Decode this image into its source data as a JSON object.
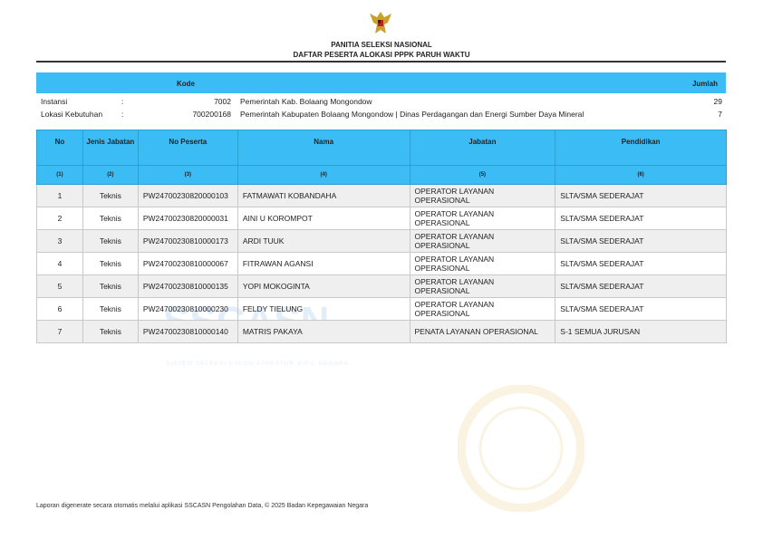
{
  "header": {
    "title": "PANITIA SELEKSI NASIONAL",
    "subtitle": "DAFTAR PESERTA ALOKASI PPPK PARUH WAKTU"
  },
  "summary": {
    "kode_label": "Kode",
    "jumlah_label": "Jumlah",
    "rows": [
      {
        "label": "Instansi",
        "sep": ":",
        "code": "7002",
        "name": "Pemerintah Kab. Bolaang Mongondow",
        "count": "29"
      },
      {
        "label": "Lokasi Kebutuhan",
        "sep": ":",
        "code": "700200168",
        "name": "Pemerintah Kabupaten Bolaang Mongondow | Dinas Perdagangan dan Energi Sumber Daya Mineral",
        "count": "7"
      }
    ]
  },
  "table": {
    "headers": [
      "No",
      "Jenis Jabatan",
      "No Peserta",
      "Nama",
      "Jabatan",
      "Pendidikan"
    ],
    "numbers": [
      "(1)",
      "(2)",
      "(3)",
      "(4)",
      "(5)",
      "(6)"
    ],
    "rows": [
      [
        "1",
        "Teknis",
        "PW24700230820000103",
        "FATMAWATI KOBANDAHA",
        "OPERATOR LAYANAN OPERASIONAL",
        "SLTA/SMA SEDERAJAT"
      ],
      [
        "2",
        "Teknis",
        "PW24700230820000031",
        "AINI U KOROMPOT",
        "OPERATOR LAYANAN OPERASIONAL",
        "SLTA/SMA SEDERAJAT"
      ],
      [
        "3",
        "Teknis",
        "PW24700230810000173",
        "ARDI TUUK",
        "OPERATOR LAYANAN OPERASIONAL",
        "SLTA/SMA SEDERAJAT"
      ],
      [
        "4",
        "Teknis",
        "PW24700230810000067",
        "FITRAWAN AGANSI",
        "OPERATOR LAYANAN OPERASIONAL",
        "SLTA/SMA SEDERAJAT"
      ],
      [
        "5",
        "Teknis",
        "PW24700230810000135",
        "YOPI MOKOGINTA",
        "OPERATOR LAYANAN OPERASIONAL",
        "SLTA/SMA SEDERAJAT"
      ],
      [
        "6",
        "Teknis",
        "PW24700230810000230",
        "FELDY TIELUNG",
        "OPERATOR LAYANAN OPERASIONAL",
        "SLTA/SMA SEDERAJAT"
      ],
      [
        "7",
        "Teknis",
        "PW24700230810000140",
        "MATRIS PAKAYA",
        "PENATA LAYANAN OPERASIONAL",
        "S-1 SEMUA JURUSAN"
      ]
    ]
  },
  "watermarks": {
    "sscasn": "SSCASN",
    "sscasn_sub": "SISTEM SELEKSI CALON APARATUR SIPIL NEGARA",
    "cat": "COMPUTER ASSISTED TEST",
    "bkn": "BADAN KEPEGAWAIAN NEGARA"
  },
  "footer": "Laporan digenerate secara otomatis melalui aplikasi SSCASN Pengolahan Data, © 2025 Badan Kepegawaian Negara",
  "colors": {
    "header": "#3bbcf5",
    "row_alt": "#efefef"
  }
}
